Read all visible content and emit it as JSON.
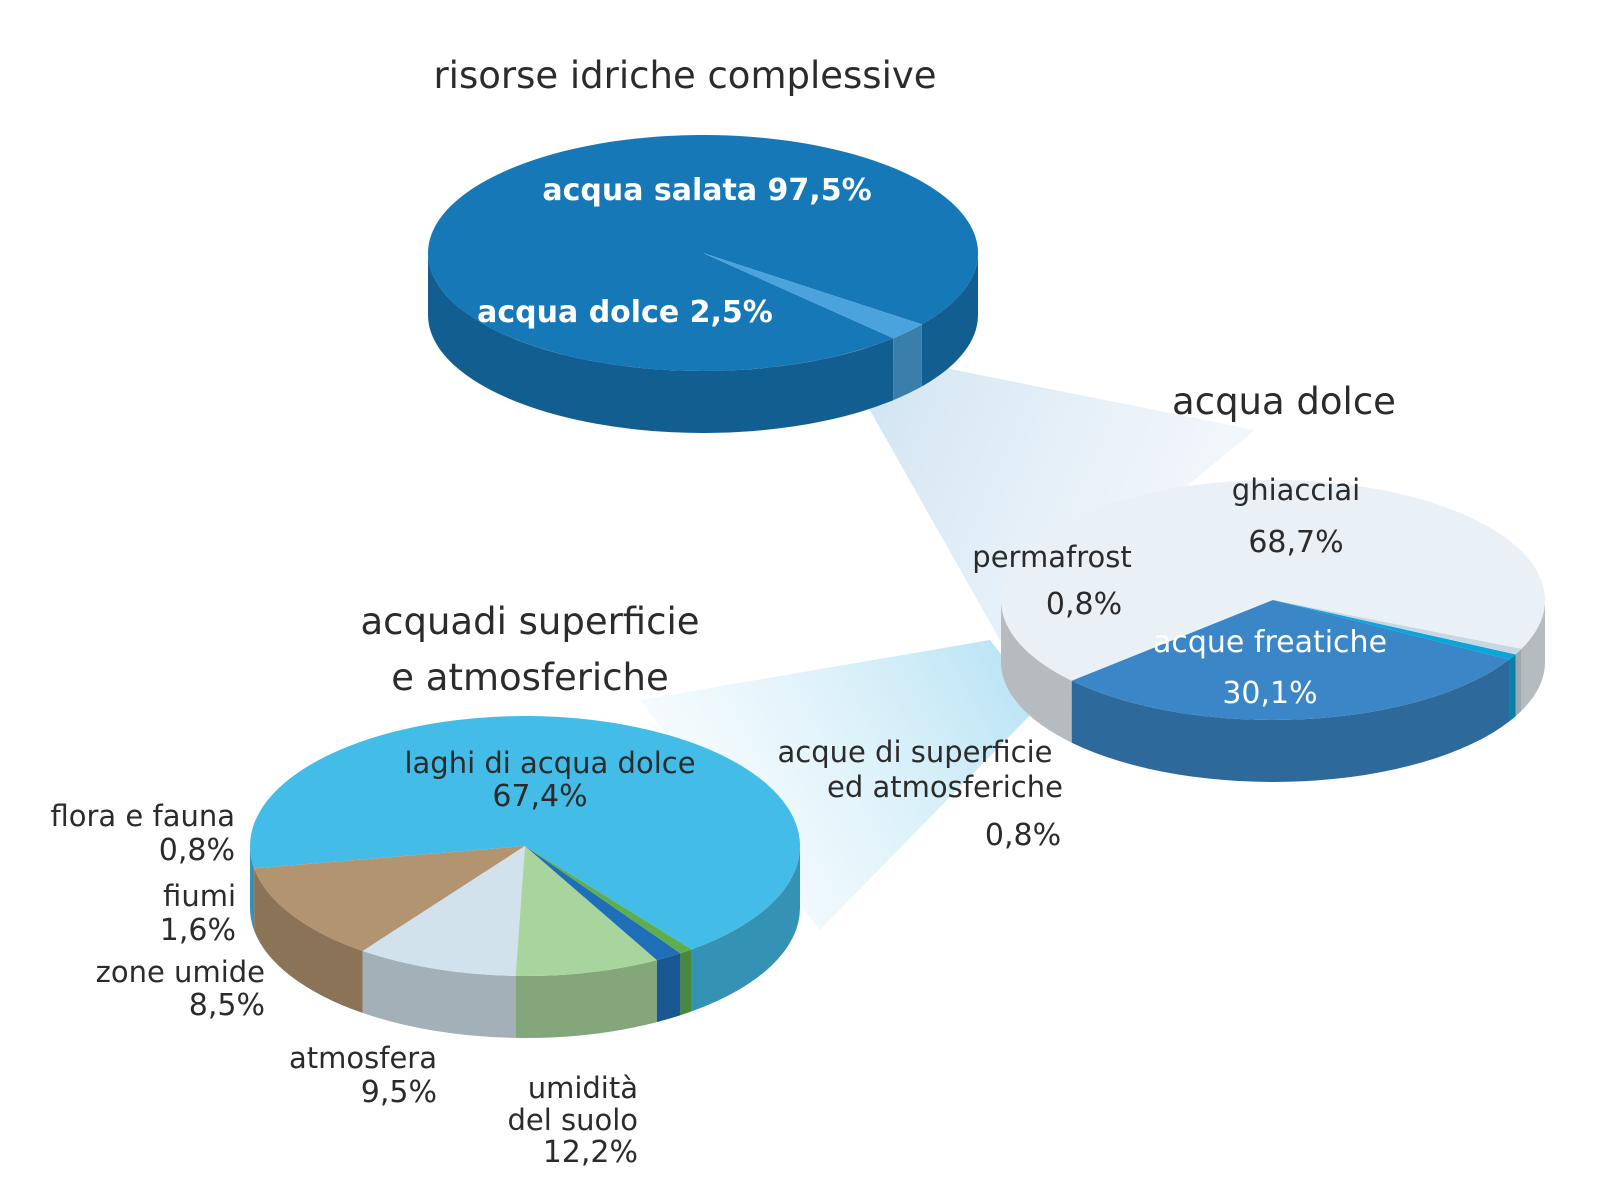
{
  "chart_data": [
    {
      "type": "pie",
      "title": "risorse idriche complessive",
      "slices": [
        {
          "label": "acqua salata",
          "value": 97.5,
          "value_text": "97,5%",
          "color": "#1778b8"
        },
        {
          "label": "acqua dolce",
          "value": 2.5,
          "value_text": "2,5%",
          "color": "#4aa3dc"
        }
      ]
    },
    {
      "type": "pie",
      "title": "acqua dolce",
      "slices": [
        {
          "label": "ghiacciai",
          "value": 68.7,
          "value_text": "68,7%",
          "color": "#e9f0f6"
        },
        {
          "label": "acque freatiche",
          "value": 30.1,
          "value_text": "30,1%",
          "color": "#3a86c6"
        },
        {
          "label": "acque di superficie ed atmosferiche",
          "value": 0.8,
          "value_text": "0,8%",
          "color": "#0aa6da"
        },
        {
          "label": "permafrost",
          "value": 0.8,
          "value_text": "0,8%",
          "color": "#c9d7e3"
        }
      ]
    },
    {
      "type": "pie",
      "title_line1": "acquadi superficie",
      "title_line2": "e atmosferiche",
      "slices": [
        {
          "label": "laghi di acqua dolce",
          "value": 67.4,
          "value_text": "67,4%",
          "color": "#43bde8"
        },
        {
          "label": "umidità del suolo",
          "label_line1": "umidità",
          "label_line2": "del suolo",
          "value": 12.2,
          "value_text": "12,2%",
          "color": "#b29470"
        },
        {
          "label": "atmosfera",
          "value": 9.5,
          "value_text": "9,5%",
          "color": "#d2e2ec"
        },
        {
          "label": "zone umide",
          "value": 8.5,
          "value_text": "8,5%",
          "color": "#a8d59d"
        },
        {
          "label": "fiumi",
          "value": 1.6,
          "value_text": "1,6%",
          "color": "#1f6fb8"
        },
        {
          "label": "flora e fauna",
          "value": 0.8,
          "value_text": "0,8%",
          "color": "#5fae4e"
        }
      ]
    }
  ],
  "labels": {
    "salata": "acqua salata 97,5%",
    "dolce": "acqua dolce 2,5%",
    "fresh_line1": "acque di superficie",
    "fresh_line2": "ed atmosferiche"
  }
}
